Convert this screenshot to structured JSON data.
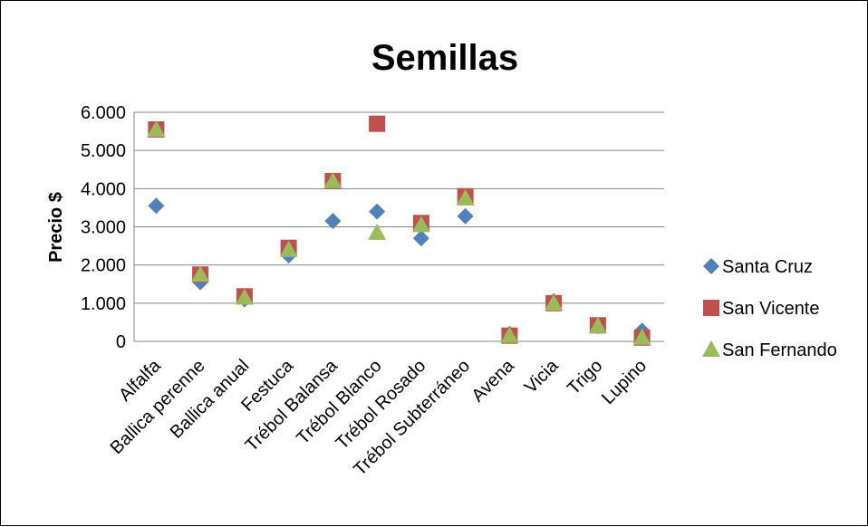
{
  "chart_data": {
    "type": "scatter",
    "title": "Semillas",
    "xlabel": "",
    "ylabel": "Precio $",
    "categories": [
      "Alfalfa",
      "Ballica perenne",
      "Ballica anual",
      "Festuca",
      "Trébol Balansa",
      "Trébol Blanco",
      "Trébol Rosado",
      "Trébol Subterráneo",
      "Avena",
      "Vicia",
      "Trigo",
      "Lupino"
    ],
    "ylim": [
      0,
      6000
    ],
    "yticks": [
      0,
      1000,
      2000,
      3000,
      4000,
      5000,
      6000
    ],
    "ytick_labels": [
      "0",
      "1.000",
      "2.000",
      "3.000",
      "4.000",
      "5.000",
      "6.000"
    ],
    "grid": "horizontal",
    "legend_position": "right",
    "series": [
      {
        "name": "Santa Cruz",
        "marker": "diamond",
        "color": "#4F81BD",
        "values": [
          3550,
          1550,
          1100,
          2250,
          3150,
          3400,
          2700,
          3280,
          200,
          1050,
          400,
          280
        ]
      },
      {
        "name": "San Vicente",
        "marker": "square",
        "color": "#C0504D",
        "values": [
          5550,
          1750,
          1180,
          2450,
          4200,
          5700,
          3100,
          3800,
          150,
          1000,
          420,
          100
        ]
      },
      {
        "name": "San Fernando",
        "marker": "triangle",
        "color": "#9BBB59",
        "values": [
          5550,
          1750,
          1150,
          2400,
          4200,
          2850,
          3050,
          3750,
          150,
          1000,
          400,
          100
        ]
      }
    ]
  }
}
